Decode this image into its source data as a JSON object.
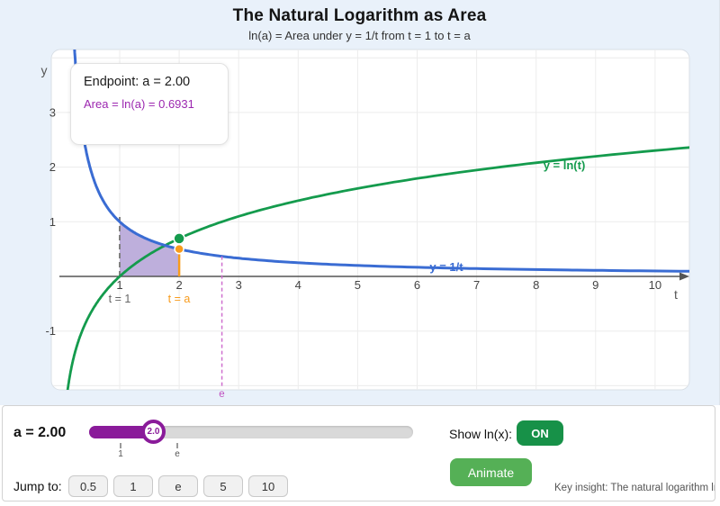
{
  "header": {
    "title": "The Natural Logarithm as Area",
    "subtitle": "ln(a) = Area under y = 1/t from t = 1 to t = a"
  },
  "graph": {
    "info_box": {
      "line1": "Endpoint: a = 2.00",
      "line2": "Area = ln(a) = 0.6931"
    },
    "labels": {
      "y_axis": "y",
      "x_axis": "t",
      "ln_curve": "y = ln(t)",
      "reciprocal_curve": "y = 1/t",
      "t1": "t = 1",
      "ta": "t = a",
      "e": "e"
    }
  },
  "chart_data": {
    "type": "line",
    "xlabel": "t",
    "ylabel": "y",
    "xlim": [
      0,
      10.58
    ],
    "ylim": [
      -2.08,
      4.15
    ],
    "x_ticks": [
      "1",
      "2",
      "3",
      "4",
      "5",
      "6",
      "7",
      "8",
      "9",
      "10"
    ],
    "x_tick_values": [
      1,
      2,
      3,
      4,
      5,
      6,
      7,
      8,
      9,
      10
    ],
    "y_ticks": [
      "3",
      "2",
      "1",
      "-1"
    ],
    "y_tick_values": [
      3,
      2,
      1,
      -1
    ],
    "x_gridlines": [
      1,
      2,
      3,
      4,
      5,
      6,
      7,
      8,
      9,
      10
    ],
    "y_gridlines": [
      4,
      3,
      2,
      1,
      -1,
      -2
    ],
    "a_value": 2.0,
    "area_value": 0.6931,
    "e_value": 2.71828,
    "series": [
      {
        "name": "y = 1/t",
        "fn": "reciprocal",
        "color": "#3a6cd3",
        "t_range": [
          0.2,
          10.58
        ]
      },
      {
        "name": "y = ln(t)",
        "fn": "ln",
        "color": "#149b4d",
        "t_range": [
          0.12,
          10.58
        ]
      }
    ],
    "shaded_region": {
      "fn": "reciprocal",
      "from": 1,
      "to": 2,
      "fill": "rgba(125,95,185,0.5)",
      "description": "Area under y = 1/t from t = 1 to t = a"
    },
    "markers": [
      {
        "name": "reciprocal-point",
        "x": 2,
        "y": 0.5,
        "color": "#f89b1c"
      },
      {
        "name": "ln-point",
        "x": 2,
        "y": 0.6931,
        "color": "#149b4d"
      }
    ],
    "vlines": [
      {
        "name": "t1-dashed-line",
        "x": 1,
        "y_from": 0,
        "y_to": 1.1,
        "style": "dashed",
        "color": "#808080"
      },
      {
        "name": "ta-line",
        "x": 2,
        "y_from": 0,
        "y_to": 0.5,
        "style": "solid",
        "color": "#f89b1c"
      },
      {
        "name": "e-dashed-line",
        "x": 2.71828,
        "y_from": 0.368,
        "y_to": -2.03,
        "style": "dashed",
        "color": "#cf6fcf"
      }
    ]
  },
  "controls": {
    "a_label": "a = 2.00",
    "slider": {
      "value_label": "2.0",
      "ticks": [
        "1",
        "e"
      ]
    },
    "show_ln": {
      "label": "Show ln(x):",
      "state": "ON"
    },
    "animate_label": "Animate",
    "jump": {
      "label": "Jump to:",
      "options": [
        "0.5",
        "1",
        "e",
        "5",
        "10"
      ]
    },
    "key_insight": "Key insight: The natural logarithm ln(a) eq"
  },
  "colors": {
    "background": "#e9f1fa",
    "accent_purple": "#8a1b9a",
    "area_text_purple": "#9c27b0",
    "curve_blue": "#3a6cd3",
    "curve_green": "#149b4d",
    "orange": "#f89b1c",
    "on_green": "#179148",
    "animate_green": "#55b056",
    "e_line_magenta": "#cf6fcf"
  }
}
